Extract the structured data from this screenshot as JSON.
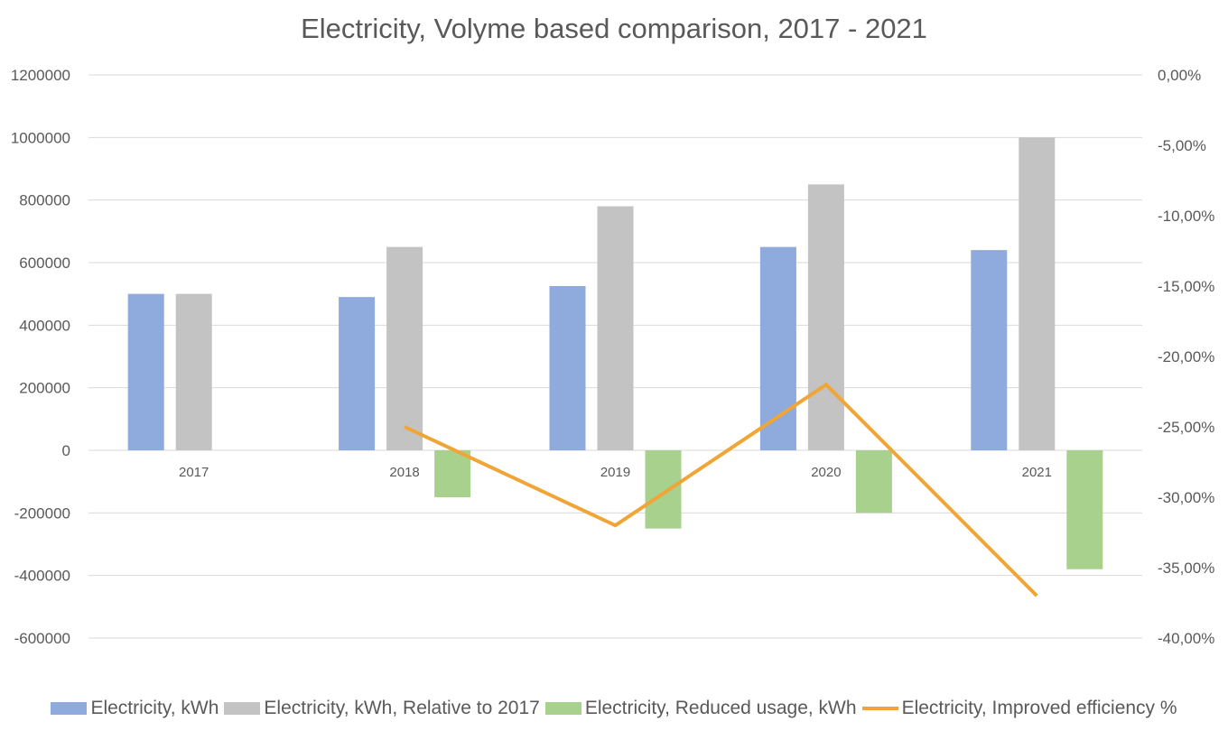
{
  "colors": {
    "kwh": "#8faadc",
    "relative": "#c3c3c3",
    "reduced": "#a9d18e",
    "efficiency": "#f0a536",
    "grid": "#d9d9d9",
    "text": "#595959"
  },
  "chart_data": {
    "type": "bar",
    "title": "Electricity, Volyme based comparison, 2017 - 2021",
    "categories": [
      "2017",
      "2018",
      "2019",
      "2020",
      "2021"
    ],
    "series": [
      {
        "name": "Electricity, kWh",
        "type": "bar",
        "axis": "left",
        "values": [
          500000,
          490000,
          525000,
          650000,
          640000
        ]
      },
      {
        "name": "Electricity, kWh, Relative to 2017",
        "type": "bar",
        "axis": "left",
        "values": [
          500000,
          650000,
          780000,
          850000,
          1000000
        ]
      },
      {
        "name": "Electricity, Reduced usage, kWh",
        "type": "bar",
        "axis": "left",
        "values": [
          null,
          -150000,
          -250000,
          -200000,
          -380000
        ]
      },
      {
        "name": "Electricity, Improved efficiency %",
        "type": "line",
        "axis": "right",
        "values": [
          null,
          -25.0,
          -32.0,
          -22.0,
          -37.0
        ]
      }
    ],
    "y_left": {
      "ylim": [
        -600000,
        1200000
      ],
      "ticks": [
        1200000,
        1000000,
        800000,
        600000,
        400000,
        200000,
        0,
        -200000,
        -400000,
        -600000
      ],
      "tick_labels": [
        "1200000",
        "1000000",
        "800000",
        "600000",
        "400000",
        "200000",
        "0",
        "-200000",
        "-400000",
        "-600000"
      ]
    },
    "y_right": {
      "ylim": [
        -40,
        0
      ],
      "ticks": [
        0,
        -5,
        -10,
        -15,
        -20,
        -25,
        -30,
        -35,
        -40
      ],
      "tick_labels": [
        "0,00%",
        "-5,00%",
        "-10,00%",
        "-15,00%",
        "-20,00%",
        "-25,00%",
        "-30,00%",
        "-35,00%",
        "-40,00%"
      ]
    },
    "grid": true,
    "legend_position": "bottom"
  }
}
